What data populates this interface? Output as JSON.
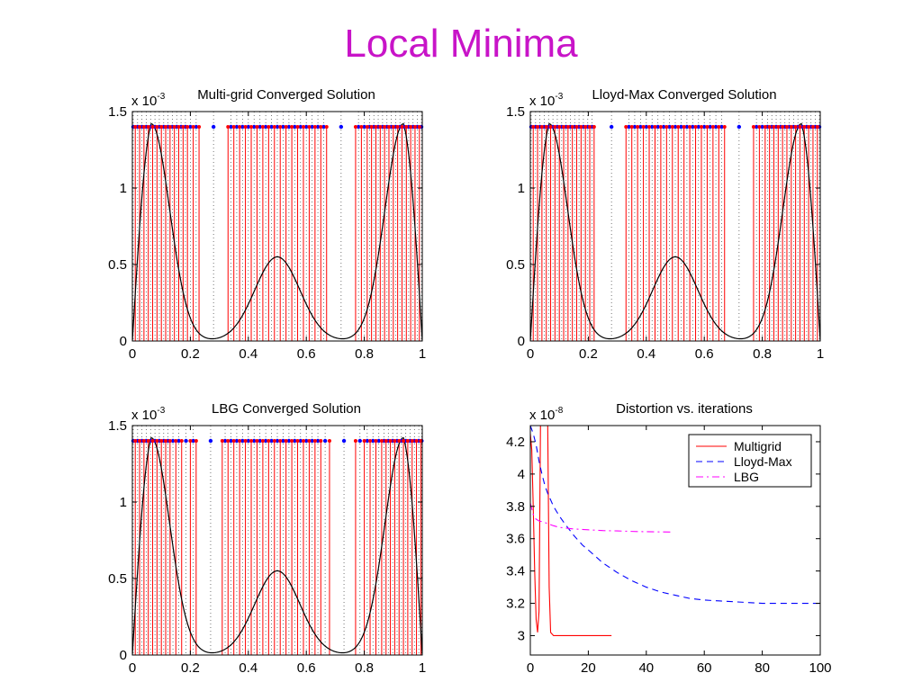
{
  "slide": {
    "title": "Local Minima"
  },
  "chart_data": [
    {
      "type": "line",
      "id": "multigrid-solution",
      "title": "Multi-grid Converged Solution",
      "y_multiplier": "x 10",
      "y_exponent": "-3",
      "xlim": [
        0,
        1
      ],
      "ylim": [
        0,
        1.5
      ],
      "xticks": [
        "0",
        "0.2",
        "0.4",
        "0.6",
        "0.8",
        "1"
      ],
      "yticks": [
        "0",
        "0.5",
        "1",
        "1.5"
      ],
      "curve_color": "#000000",
      "boundary_color": "#ff0000",
      "point_color": "#0000ff",
      "point_level": 1.4,
      "boundaries": [
        0.01,
        0.025,
        0.04,
        0.055,
        0.07,
        0.085,
        0.1,
        0.115,
        0.13,
        0.145,
        0.16,
        0.175,
        0.19,
        0.21,
        0.23,
        0.33,
        0.35,
        0.37,
        0.39,
        0.41,
        0.43,
        0.45,
        0.47,
        0.49,
        0.51,
        0.53,
        0.55,
        0.57,
        0.59,
        0.61,
        0.63,
        0.65,
        0.67,
        0.77,
        0.79,
        0.81,
        0.825,
        0.84,
        0.855,
        0.87,
        0.885,
        0.9,
        0.915,
        0.93,
        0.945,
        0.96,
        0.975,
        0.99
      ],
      "points": [
        0.003,
        0.018,
        0.033,
        0.048,
        0.063,
        0.078,
        0.093,
        0.108,
        0.123,
        0.138,
        0.153,
        0.168,
        0.183,
        0.2,
        0.22,
        0.28,
        0.34,
        0.36,
        0.38,
        0.4,
        0.42,
        0.44,
        0.46,
        0.48,
        0.5,
        0.52,
        0.54,
        0.56,
        0.58,
        0.6,
        0.62,
        0.64,
        0.66,
        0.72,
        0.78,
        0.8,
        0.818,
        0.833,
        0.848,
        0.863,
        0.878,
        0.893,
        0.908,
        0.923,
        0.938,
        0.953,
        0.968,
        0.983,
        0.997
      ]
    },
    {
      "type": "line",
      "id": "lloydmax-solution",
      "title": "Lloyd-Max Converged Solution",
      "y_multiplier": "x 10",
      "y_exponent": "-3",
      "xlim": [
        0,
        1
      ],
      "ylim": [
        0,
        1.5
      ],
      "xticks": [
        "0",
        "0.2",
        "0.4",
        "0.6",
        "0.8",
        "1"
      ],
      "yticks": [
        "0",
        "0.5",
        "1",
        "1.5"
      ],
      "curve_color": "#000000",
      "boundary_color": "#ff0000",
      "point_color": "#0000ff",
      "point_level": 1.4,
      "boundaries": [
        0.01,
        0.025,
        0.04,
        0.055,
        0.07,
        0.085,
        0.1,
        0.115,
        0.13,
        0.145,
        0.16,
        0.175,
        0.19,
        0.205,
        0.22,
        0.33,
        0.35,
        0.37,
        0.39,
        0.41,
        0.43,
        0.45,
        0.47,
        0.49,
        0.51,
        0.53,
        0.55,
        0.57,
        0.59,
        0.61,
        0.63,
        0.65,
        0.67,
        0.77,
        0.79,
        0.81,
        0.825,
        0.84,
        0.855,
        0.87,
        0.885,
        0.9,
        0.915,
        0.93,
        0.945,
        0.96,
        0.975,
        0.99
      ],
      "points": [
        0.003,
        0.018,
        0.033,
        0.048,
        0.063,
        0.078,
        0.093,
        0.108,
        0.123,
        0.138,
        0.153,
        0.168,
        0.183,
        0.198,
        0.213,
        0.28,
        0.34,
        0.36,
        0.38,
        0.4,
        0.42,
        0.44,
        0.46,
        0.48,
        0.5,
        0.52,
        0.54,
        0.56,
        0.58,
        0.6,
        0.62,
        0.64,
        0.66,
        0.72,
        0.78,
        0.8,
        0.818,
        0.833,
        0.848,
        0.863,
        0.878,
        0.893,
        0.908,
        0.923,
        0.938,
        0.953,
        0.968,
        0.983,
        0.997
      ]
    },
    {
      "type": "line",
      "id": "lbg-solution",
      "title": "LBG Converged Solution",
      "y_multiplier": "x 10",
      "y_exponent": "-3",
      "xlim": [
        0,
        1
      ],
      "ylim": [
        0,
        1.5
      ],
      "xticks": [
        "0",
        "0.2",
        "0.4",
        "0.6",
        "0.8",
        "1"
      ],
      "yticks": [
        "0",
        "0.5",
        "1",
        "1.5"
      ],
      "curve_color": "#000000",
      "boundary_color": "#ff0000",
      "point_color": "#0000ff",
      "point_level": 1.4,
      "boundaries": [
        0.01,
        0.025,
        0.04,
        0.055,
        0.07,
        0.085,
        0.1,
        0.115,
        0.13,
        0.15,
        0.17,
        0.2,
        0.22,
        0.31,
        0.33,
        0.35,
        0.37,
        0.39,
        0.41,
        0.43,
        0.45,
        0.47,
        0.49,
        0.51,
        0.53,
        0.55,
        0.57,
        0.59,
        0.61,
        0.63,
        0.65,
        0.68,
        0.77,
        0.8,
        0.82,
        0.84,
        0.86,
        0.875,
        0.89,
        0.905,
        0.92,
        0.935,
        0.95,
        0.965,
        0.98,
        0.995
      ],
      "points": [
        0.003,
        0.018,
        0.033,
        0.048,
        0.063,
        0.078,
        0.093,
        0.108,
        0.123,
        0.14,
        0.16,
        0.185,
        0.21,
        0.27,
        0.32,
        0.34,
        0.36,
        0.38,
        0.4,
        0.42,
        0.44,
        0.46,
        0.48,
        0.5,
        0.52,
        0.54,
        0.56,
        0.58,
        0.6,
        0.62,
        0.64,
        0.665,
        0.73,
        0.785,
        0.81,
        0.83,
        0.85,
        0.868,
        0.883,
        0.898,
        0.913,
        0.928,
        0.943,
        0.958,
        0.973,
        0.988,
        0.998
      ]
    },
    {
      "type": "line",
      "id": "distortion-vs-iterations",
      "title": "Distortion vs. iterations",
      "y_multiplier": "x 10",
      "y_exponent": "-8",
      "xlim": [
        0,
        100
      ],
      "ylim": [
        2.88,
        4.3
      ],
      "xticks": [
        "0",
        "20",
        "40",
        "60",
        "80",
        "100"
      ],
      "yticks": [
        "3",
        "3.2",
        "3.4",
        "3.6",
        "3.8",
        "4",
        "4.2"
      ],
      "legend_position": "top-right",
      "series": [
        {
          "name": "Multigrid",
          "color": "#ff0000",
          "dash": "solid",
          "x": [
            0,
            0.5,
            1,
            1.5,
            2,
            2.5,
            3,
            3.5,
            4,
            4.5,
            5,
            5.5,
            6,
            6.5,
            7,
            8,
            10,
            12,
            15,
            20,
            25,
            28
          ],
          "y": [
            4.25,
            4.15,
            3.8,
            3.4,
            3.1,
            3.02,
            3.15,
            4.3,
            4.3,
            4.3,
            4.3,
            4.3,
            4.3,
            3.3,
            3.02,
            3.0,
            3.0,
            3.0,
            3.0,
            3.0,
            3.0,
            3.0
          ]
        },
        {
          "name": "Lloyd-Max",
          "color": "#0000ff",
          "dash": "dashed",
          "x": [
            0,
            1,
            2,
            3,
            4,
            5,
            6,
            8,
            10,
            12,
            15,
            18,
            20,
            25,
            30,
            35,
            40,
            45,
            50,
            55,
            60,
            65,
            70,
            75,
            80,
            85,
            90,
            95,
            100
          ],
          "y": [
            4.3,
            4.25,
            4.18,
            4.08,
            4.0,
            3.93,
            3.88,
            3.8,
            3.74,
            3.69,
            3.62,
            3.56,
            3.53,
            3.45,
            3.39,
            3.34,
            3.3,
            3.27,
            3.25,
            3.23,
            3.22,
            3.215,
            3.21,
            3.205,
            3.2,
            3.2,
            3.2,
            3.2,
            3.2
          ]
        },
        {
          "name": "LBG",
          "color": "#ff00ff",
          "dash": "dashdot",
          "x": [
            0,
            1,
            2,
            3,
            5,
            8,
            10,
            15,
            20,
            25,
            30,
            35,
            40,
            45,
            49
          ],
          "y": [
            3.82,
            3.75,
            3.72,
            3.71,
            3.7,
            3.68,
            3.67,
            3.66,
            3.655,
            3.65,
            3.648,
            3.645,
            3.643,
            3.642,
            3.641
          ]
        }
      ]
    }
  ]
}
